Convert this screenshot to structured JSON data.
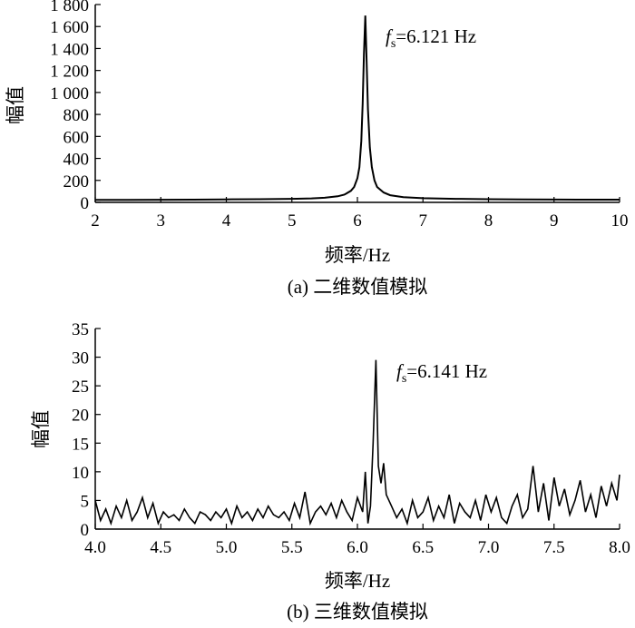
{
  "chart_data": [
    {
      "type": "line",
      "caption": "(a) 二维数值模拟",
      "xlabel": "频率/Hz",
      "ylabel": "幅值",
      "xlim": [
        2,
        10
      ],
      "ylim": [
        0,
        1800
      ],
      "x_ticks": [
        2,
        3,
        4,
        5,
        6,
        7,
        8,
        9,
        10
      ],
      "x_tick_labels": [
        "2",
        "3",
        "4",
        "5",
        "6",
        "7",
        "8",
        "9",
        "10"
      ],
      "y_ticks": [
        0,
        200,
        400,
        600,
        800,
        1000,
        1200,
        1400,
        1600,
        1800
      ],
      "y_tick_labels": [
        "0",
        "200",
        "400",
        "600",
        "800",
        "1 000",
        "1 200",
        "1 400",
        "1 600",
        "1 800"
      ],
      "annotation": {
        "symbol": "f",
        "subscript": "s",
        "text": "=6.121 Hz"
      },
      "series": [
        {
          "x": [
            2.0,
            2.5,
            3.0,
            3.5,
            4.0,
            4.5,
            5.0,
            5.3,
            5.5,
            5.7,
            5.8,
            5.9,
            5.95,
            6.0,
            6.03,
            6.06,
            6.08,
            6.1,
            6.121,
            6.14,
            6.16,
            6.19,
            6.22,
            6.26,
            6.3,
            6.4,
            6.5,
            6.7,
            7.0,
            7.5,
            8.0,
            8.5,
            9.0,
            9.5,
            10.0
          ],
          "y": [
            22,
            23,
            24,
            25,
            27,
            29,
            32,
            36,
            42,
            55,
            70,
            105,
            140,
            220,
            320,
            560,
            900,
            1350,
            1700,
            1300,
            850,
            500,
            320,
            200,
            140,
            90,
            65,
            48,
            38,
            32,
            29,
            27,
            26,
            25,
            25
          ]
        }
      ]
    },
    {
      "type": "line",
      "caption": "(b) 三维数值模拟",
      "xlabel": "频率/Hz",
      "ylabel": "幅值",
      "xlim": [
        4.0,
        8.0
      ],
      "ylim": [
        0,
        35
      ],
      "x_ticks": [
        4.0,
        4.5,
        5.0,
        5.5,
        6.0,
        6.5,
        7.0,
        7.5,
        8.0
      ],
      "x_tick_labels": [
        "4.0",
        "4.5",
        "5.0",
        "5.5",
        "6.0",
        "6.5",
        "7.0",
        "7.5",
        "8.0"
      ],
      "y_ticks": [
        0,
        5,
        10,
        15,
        20,
        25,
        30,
        35
      ],
      "y_tick_labels": [
        "0",
        "5",
        "10",
        "15",
        "20",
        "25",
        "30",
        "35"
      ],
      "annotation": {
        "symbol": "f",
        "subscript": "s",
        "text": "=6.141 Hz"
      },
      "series": [
        {
          "x": [
            4.0,
            4.04,
            4.08,
            4.12,
            4.16,
            4.2,
            4.24,
            4.28,
            4.32,
            4.36,
            4.4,
            4.44,
            4.48,
            4.52,
            4.56,
            4.6,
            4.64,
            4.68,
            4.72,
            4.76,
            4.8,
            4.84,
            4.88,
            4.92,
            4.96,
            5.0,
            5.04,
            5.08,
            5.12,
            5.16,
            5.2,
            5.24,
            5.28,
            5.32,
            5.36,
            5.4,
            5.44,
            5.48,
            5.52,
            5.56,
            5.6,
            5.64,
            5.68,
            5.72,
            5.76,
            5.8,
            5.84,
            5.88,
            5.92,
            5.96,
            6.0,
            6.04,
            6.06,
            6.08,
            6.1,
            6.12,
            6.141,
            6.16,
            6.18,
            6.2,
            6.22,
            6.26,
            6.3,
            6.34,
            6.38,
            6.42,
            6.46,
            6.5,
            6.54,
            6.58,
            6.62,
            6.66,
            6.7,
            6.74,
            6.78,
            6.82,
            6.86,
            6.9,
            6.94,
            6.98,
            7.02,
            7.06,
            7.1,
            7.14,
            7.18,
            7.22,
            7.26,
            7.3,
            7.34,
            7.38,
            7.42,
            7.46,
            7.5,
            7.54,
            7.58,
            7.62,
            7.66,
            7.7,
            7.74,
            7.78,
            7.82,
            7.86,
            7.9,
            7.94,
            7.98,
            8.0
          ],
          "y": [
            5,
            1.5,
            3.5,
            1,
            4,
            2,
            5,
            1.5,
            3,
            5.5,
            2,
            4.5,
            1,
            3,
            2,
            2.5,
            1.5,
            3.5,
            2,
            1,
            3,
            2.5,
            1.5,
            3,
            2,
            3.5,
            1,
            4,
            2,
            3,
            1.5,
            3.5,
            2,
            4,
            2.5,
            2,
            3,
            1.5,
            4.5,
            2,
            6.5,
            1,
            3,
            4,
            2.5,
            4.5,
            2,
            5,
            3,
            1.5,
            5.5,
            3,
            10,
            1,
            4,
            15,
            29.5,
            11,
            8,
            11.5,
            6,
            4,
            2,
            3.5,
            1,
            5,
            2,
            3,
            5.5,
            1.5,
            4,
            2,
            6,
            1,
            4.5,
            3,
            2,
            5,
            1.5,
            6,
            3,
            5.5,
            2,
            1,
            4,
            6,
            2,
            3.5,
            11,
            3,
            8,
            1.5,
            9,
            4,
            7,
            2.5,
            5,
            8.5,
            3,
            6,
            2,
            7.5,
            4,
            8,
            5,
            9.5
          ]
        }
      ]
    }
  ]
}
